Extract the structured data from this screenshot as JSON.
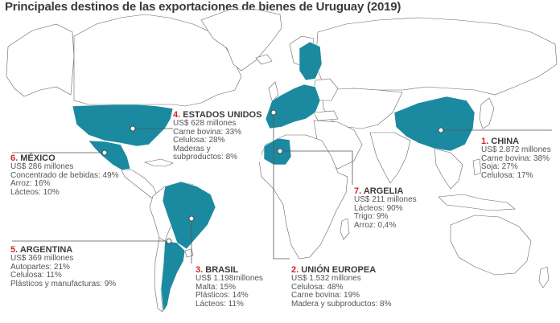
{
  "title": "Principales destinos de las exportaciones de bienes de Uruguay (2019)",
  "colors": {
    "highlight": "#1b8aa0",
    "land": "#ffffff",
    "border": "#555555",
    "number": "#d2232a",
    "text": "#555555"
  },
  "destinations": [
    {
      "id": "china",
      "number": "1.",
      "name": "CHINA",
      "lines": [
        "US$ 2.872 millones",
        "Carne bovina: 38%",
        "Soja: 27%",
        "Celulosa: 17%"
      ]
    },
    {
      "id": "union-europea",
      "number": "2.",
      "name": "UNIÓN EUROPEA",
      "lines": [
        "US$ 1.532 millones",
        "Celulosa: 48%",
        "Carne bovina: 19%",
        "Madera y subproductos: 8%"
      ]
    },
    {
      "id": "brasil",
      "number": "3.",
      "name": "BRASIL",
      "lines": [
        "US$ 1.198millones",
        "Malta: 15%",
        "Plásticos: 14%",
        "Lácteos: 11%"
      ]
    },
    {
      "id": "estados-unidos",
      "number": "4.",
      "name": "ESTADOS UNIDOS",
      "lines": [
        "US$ 628 millones",
        "Carne bovina: 33%",
        "Celulosa: 28%",
        "Maderas y",
        "subproductos: 8%"
      ]
    },
    {
      "id": "argentina",
      "number": "5.",
      "name": "ARGENTINA",
      "lines": [
        "US$ 369 millones",
        "Autopartes: 21%",
        "Celulosa: 11%",
        "Plásticos y manufacturas: 9%"
      ]
    },
    {
      "id": "mexico",
      "number": "6.",
      "name": "MÉXICO",
      "lines": [
        "US$ 286 millones",
        "Concentrado de bebidas: 49%",
        "Arroz: 16%",
        "Lácteos: 10%"
      ]
    },
    {
      "id": "argelia",
      "number": "7.",
      "name": "ARGELIA",
      "lines": [
        "US$ 211 millones",
        "Lácteos: 90%",
        "Trigo: 9%",
        "Arroz: 0,4%"
      ]
    }
  ]
}
